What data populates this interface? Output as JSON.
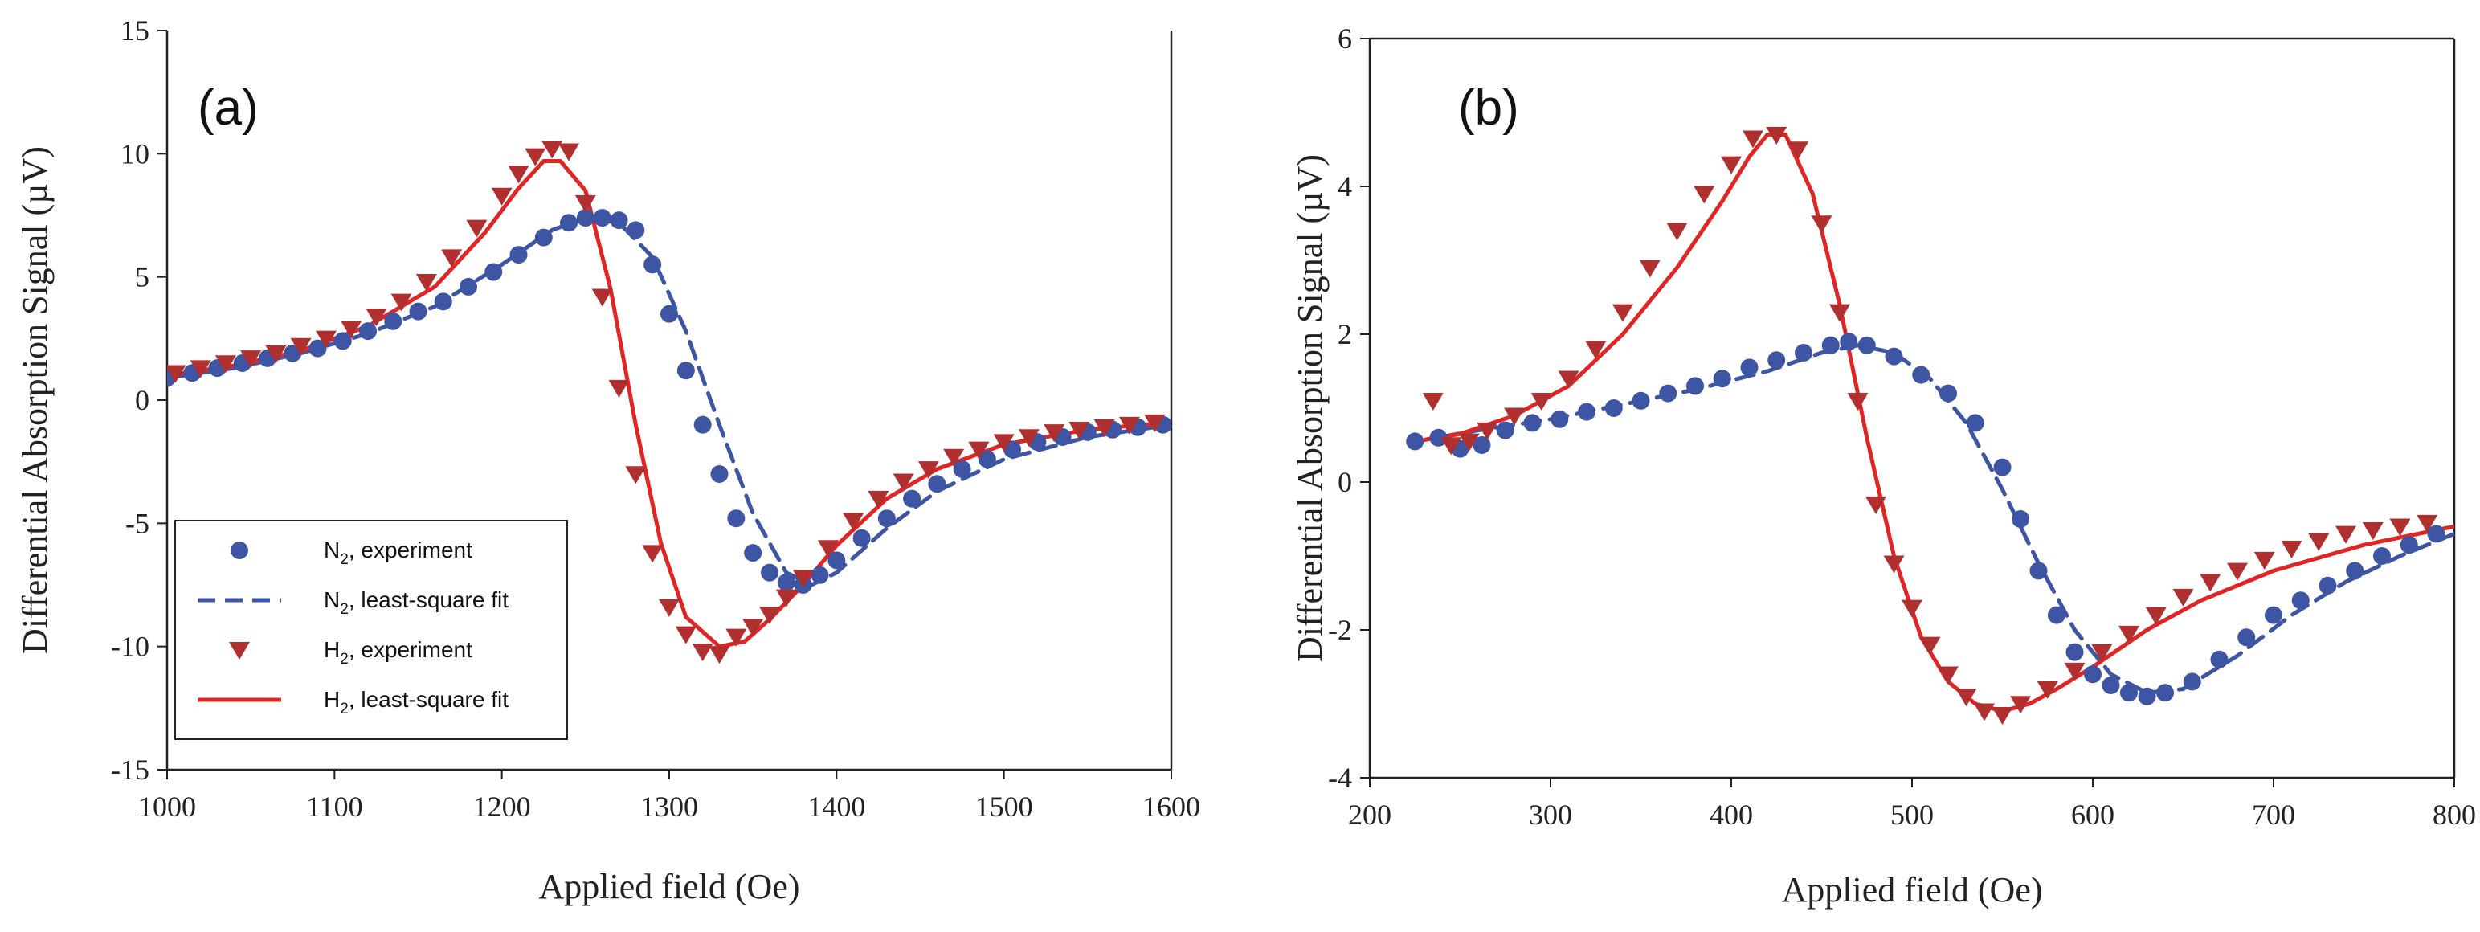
{
  "colors": {
    "n2": "#3d55a3",
    "h2": "#e02525",
    "h2_marker": "#b03030",
    "axis": "#222222"
  },
  "legend": [
    {
      "key": "n2_exp",
      "sym": "N",
      "sub": "2",
      "rest": ", experiment"
    },
    {
      "key": "n2_fit",
      "sym": "N",
      "sub": "2",
      "rest": ", least-square fit"
    },
    {
      "key": "h2_exp",
      "sym": "H",
      "sub": "2",
      "rest": ", experiment"
    },
    {
      "key": "h2_fit",
      "sym": "H",
      "sub": "2",
      "rest": ", least-square fit"
    }
  ],
  "chart_data": [
    {
      "type": "scatter",
      "panel_label": "(a)",
      "xlabel": "Applied field (Oe)",
      "ylabel": "Differential Absorption Signal (µV)",
      "xlim": [
        1000,
        1600
      ],
      "ylim": [
        -15,
        15
      ],
      "xticks": [
        1000,
        1100,
        1200,
        1300,
        1400,
        1500,
        1600
      ],
      "yticks": [
        -15,
        -10,
        -5,
        0,
        5,
        10,
        15
      ],
      "legend_position": "bottom-left",
      "series": [
        {
          "name": "N2, experiment",
          "kind": "markers",
          "marker": "circle",
          "x": [
            1000,
            1015,
            1030,
            1045,
            1060,
            1075,
            1090,
            1105,
            1120,
            1135,
            1150,
            1165,
            1180,
            1195,
            1210,
            1225,
            1240,
            1250,
            1260,
            1270,
            1280,
            1290,
            1300,
            1310,
            1320,
            1330,
            1340,
            1350,
            1360,
            1370,
            1380,
            1390,
            1400,
            1415,
            1430,
            1445,
            1460,
            1475,
            1490,
            1505,
            1520,
            1535,
            1550,
            1565,
            1580,
            1595
          ],
          "y": [
            0.9,
            1.1,
            1.3,
            1.5,
            1.7,
            1.9,
            2.1,
            2.4,
            2.8,
            3.2,
            3.6,
            4.0,
            4.6,
            5.2,
            5.9,
            6.6,
            7.2,
            7.4,
            7.4,
            7.3,
            6.9,
            5.5,
            3.5,
            1.2,
            -1.0,
            -3.0,
            -4.8,
            -6.2,
            -7.0,
            -7.4,
            -7.5,
            -7.1,
            -6.5,
            -5.6,
            -4.8,
            -4.0,
            -3.4,
            -2.8,
            -2.4,
            -2.0,
            -1.7,
            -1.5,
            -1.3,
            -1.2,
            -1.1,
            -1.0
          ]
        },
        {
          "name": "N2, least-square fit",
          "kind": "line",
          "dash": true,
          "x": [
            1000,
            1040,
            1080,
            1120,
            1160,
            1200,
            1230,
            1250,
            1270,
            1290,
            1310,
            1330,
            1350,
            1370,
            1385,
            1400,
            1430,
            1460,
            1500,
            1550,
            1600
          ],
          "y": [
            0.9,
            1.3,
            1.9,
            2.7,
            3.8,
            5.5,
            6.9,
            7.4,
            7.2,
            5.8,
            2.8,
            -1.0,
            -4.6,
            -7.0,
            -7.5,
            -7.0,
            -5.2,
            -3.7,
            -2.4,
            -1.5,
            -1.0
          ]
        },
        {
          "name": "H2, experiment",
          "kind": "markers",
          "marker": "triangle-down",
          "x": [
            1005,
            1020,
            1035,
            1050,
            1065,
            1080,
            1095,
            1110,
            1125,
            1140,
            1155,
            1170,
            1185,
            1200,
            1210,
            1220,
            1230,
            1240,
            1250,
            1260,
            1270,
            1280,
            1290,
            1300,
            1310,
            1320,
            1330,
            1340,
            1350,
            1360,
            1370,
            1380,
            1395,
            1410,
            1425,
            1440,
            1455,
            1470,
            1485,
            1500,
            1515,
            1530,
            1545,
            1560,
            1575,
            1590
          ],
          "y": [
            1.1,
            1.3,
            1.5,
            1.7,
            1.9,
            2.2,
            2.5,
            2.9,
            3.4,
            4.0,
            4.8,
            5.8,
            7.0,
            8.3,
            9.2,
            9.9,
            10.2,
            10.1,
            8.0,
            4.2,
            0.5,
            -3.0,
            -6.2,
            -8.4,
            -9.5,
            -10.2,
            -10.3,
            -9.6,
            -9.2,
            -8.7,
            -8.0,
            -7.2,
            -6.0,
            -4.9,
            -4.0,
            -3.3,
            -2.8,
            -2.3,
            -2.0,
            -1.7,
            -1.5,
            -1.3,
            -1.2,
            -1.1,
            -1.0,
            -0.9
          ]
        },
        {
          "name": "H2, least-square fit",
          "kind": "line",
          "dash": false,
          "x": [
            1000,
            1040,
            1080,
            1120,
            1160,
            1190,
            1210,
            1225,
            1235,
            1250,
            1265,
            1280,
            1295,
            1310,
            1330,
            1345,
            1360,
            1380,
            1400,
            1430,
            1460,
            1500,
            1550,
            1600
          ],
          "y": [
            1.0,
            1.4,
            2.0,
            3.0,
            4.6,
            6.8,
            8.6,
            9.7,
            9.7,
            8.5,
            4.5,
            -1.0,
            -5.8,
            -8.8,
            -10.0,
            -9.8,
            -8.9,
            -7.5,
            -5.9,
            -4.0,
            -2.8,
            -1.8,
            -1.2,
            -0.9
          ]
        }
      ]
    },
    {
      "type": "scatter",
      "panel_label": "(b)",
      "xlabel": "Applied field (Oe)",
      "ylabel": "Differential Absorption Signal (µV)",
      "xlim": [
        200,
        800
      ],
      "ylim": [
        -4,
        6
      ],
      "xticks": [
        200,
        300,
        400,
        500,
        600,
        700,
        800
      ],
      "yticks": [
        -4,
        -2,
        0,
        2,
        4,
        6
      ],
      "legend_position": "none",
      "series": [
        {
          "name": "N2, experiment",
          "kind": "markers",
          "marker": "circle",
          "x": [
            225,
            238,
            250,
            262,
            275,
            290,
            305,
            320,
            335,
            350,
            365,
            380,
            395,
            410,
            425,
            440,
            455,
            465,
            475,
            490,
            505,
            520,
            535,
            550,
            560,
            570,
            580,
            590,
            600,
            610,
            620,
            630,
            640,
            655,
            670,
            685,
            700,
            715,
            730,
            745,
            760,
            775,
            790
          ],
          "y": [
            0.55,
            0.6,
            0.45,
            0.5,
            0.7,
            0.8,
            0.85,
            0.95,
            1.0,
            1.1,
            1.2,
            1.3,
            1.4,
            1.55,
            1.65,
            1.75,
            1.85,
            1.9,
            1.85,
            1.7,
            1.45,
            1.2,
            0.8,
            0.2,
            -0.5,
            -1.2,
            -1.8,
            -2.3,
            -2.6,
            -2.75,
            -2.85,
            -2.9,
            -2.85,
            -2.7,
            -2.4,
            -2.1,
            -1.8,
            -1.6,
            -1.4,
            -1.2,
            -1.0,
            -0.85,
            -0.7
          ]
        },
        {
          "name": "N2, least-square fit",
          "kind": "line",
          "dash": true,
          "x": [
            225,
            260,
            300,
            340,
            380,
            420,
            450,
            470,
            490,
            510,
            530,
            550,
            570,
            590,
            610,
            630,
            650,
            680,
            710,
            740,
            770,
            800
          ],
          "y": [
            0.55,
            0.7,
            0.85,
            1.05,
            1.25,
            1.5,
            1.75,
            1.85,
            1.75,
            1.4,
            0.8,
            -0.1,
            -1.1,
            -2.0,
            -2.6,
            -2.85,
            -2.8,
            -2.35,
            -1.8,
            -1.35,
            -1.0,
            -0.7
          ]
        },
        {
          "name": "H2, experiment",
          "kind": "markers",
          "marker": "triangle-down",
          "x": [
            235,
            245,
            255,
            265,
            280,
            295,
            310,
            325,
            340,
            355,
            370,
            385,
            400,
            412,
            425,
            437,
            450,
            460,
            470,
            480,
            490,
            500,
            510,
            520,
            530,
            540,
            550,
            560,
            575,
            590,
            605,
            620,
            635,
            650,
            665,
            680,
            695,
            710,
            725,
            740,
            755,
            770,
            785
          ],
          "y": [
            1.1,
            0.5,
            0.55,
            0.7,
            0.9,
            1.1,
            1.4,
            1.8,
            2.3,
            2.9,
            3.4,
            3.9,
            4.3,
            4.65,
            4.7,
            4.5,
            3.5,
            2.3,
            1.1,
            -0.3,
            -1.1,
            -1.7,
            -2.2,
            -2.6,
            -2.9,
            -3.1,
            -3.15,
            -3.0,
            -2.8,
            -2.55,
            -2.3,
            -2.05,
            -1.8,
            -1.55,
            -1.35,
            -1.2,
            -1.05,
            -0.9,
            -0.8,
            -0.7,
            -0.65,
            -0.6,
            -0.55
          ]
        },
        {
          "name": "H2, least-square fit",
          "kind": "line",
          "dash": false,
          "x": [
            225,
            250,
            280,
            310,
            340,
            370,
            395,
            410,
            420,
            430,
            445,
            460,
            475,
            490,
            505,
            520,
            535,
            550,
            565,
            580,
            600,
            630,
            660,
            700,
            750,
            800
          ],
          "y": [
            0.55,
            0.65,
            0.9,
            1.3,
            2.0,
            2.9,
            3.8,
            4.4,
            4.7,
            4.7,
            3.9,
            2.4,
            0.6,
            -1.0,
            -2.1,
            -2.7,
            -3.0,
            -3.1,
            -3.0,
            -2.8,
            -2.5,
            -2.0,
            -1.6,
            -1.2,
            -0.85,
            -0.6
          ]
        }
      ]
    }
  ]
}
